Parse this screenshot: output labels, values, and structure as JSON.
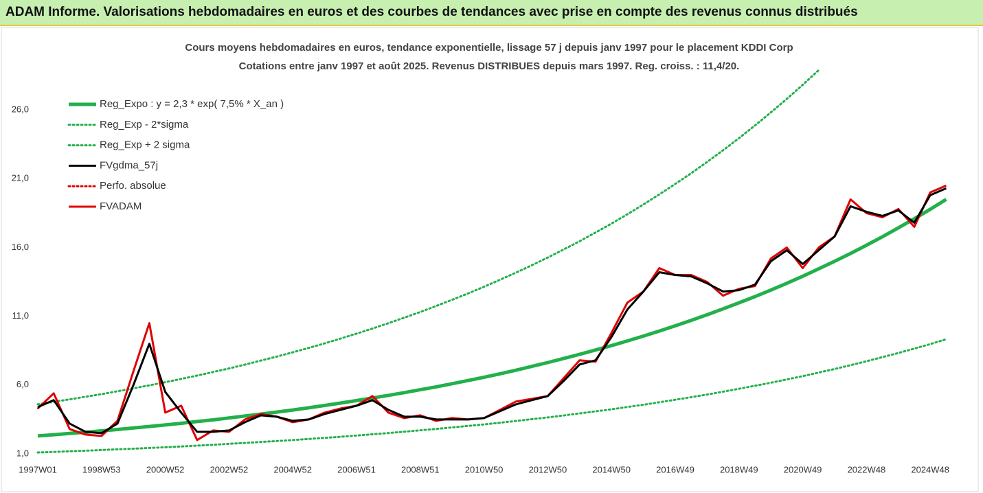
{
  "chart_data": {
    "type": "line",
    "title": "ADAM Informe. Valorisations hebdomadaires en euros et des courbes de tendances avec prise en compte des revenus connus distribués",
    "subtitle": [
      "Cours moyens hebdomadaires en euros, tendance exponentielle, lissage 57 j depuis janv 1997 pour le placement KDDI Corp",
      "Cotations entre janv 1997 et août 2025. Revenus DISTRIBUES depuis mars 1997. Reg. croiss. : 11,4/20."
    ],
    "categories": [
      "1997W01",
      null,
      null,
      null,
      "1998W53",
      null,
      null,
      null,
      "2000W52",
      null,
      null,
      null,
      "2002W52",
      null,
      null,
      null,
      "2004W52",
      null,
      null,
      null,
      "2006W51",
      null,
      null,
      null,
      "2008W51",
      null,
      null,
      null,
      "2010W50",
      null,
      null,
      null,
      "2012W50",
      null,
      null,
      null,
      "2014W50",
      null,
      null,
      null,
      "2016W49",
      null,
      null,
      null,
      "2018W49",
      null,
      null,
      null,
      "2020W49",
      null,
      null,
      null,
      "2022W48",
      null,
      null,
      null,
      "2024W48",
      null
    ],
    "ylim": [
      0.2,
      30
    ],
    "yticks": [
      {
        "value": 1,
        "label": "1,0"
      },
      {
        "value": 6,
        "label": "6,0"
      },
      {
        "value": 11,
        "label": "11,0"
      },
      {
        "value": 16,
        "label": "16,0"
      },
      {
        "value": 21,
        "label": "21,0"
      },
      {
        "value": 26,
        "label": "26,0"
      }
    ],
    "legend": "top-left",
    "series": [
      {
        "name": "Reg_Expo : y = 2,3 * exp( 7,5% *  X_an )",
        "color": "#22b04b",
        "line_style": "solid",
        "values": [
          2.3,
          2.39,
          2.48,
          2.57,
          2.67,
          2.77,
          2.88,
          2.99,
          3.1,
          3.22,
          3.35,
          3.47,
          3.61,
          3.75,
          3.89,
          4.04,
          4.19,
          4.35,
          4.52,
          4.69,
          4.87,
          5.06,
          5.25,
          5.45,
          5.66,
          5.87,
          6.1,
          6.33,
          6.57,
          6.82,
          7.08,
          7.36,
          7.64,
          7.93,
          8.23,
          8.55,
          8.87,
          9.21,
          9.56,
          9.93,
          10.31,
          10.7,
          11.11,
          11.54,
          11.98,
          12.43,
          12.91,
          13.4,
          13.91,
          14.45,
          15.0,
          15.57,
          16.17,
          16.78,
          17.43,
          18.09,
          18.78,
          19.5
        ]
      },
      {
        "name": "Reg_Exp - 2*sigma",
        "color": "#22b04b",
        "line_style": "dotted",
        "values": [
          1.1,
          1.14,
          1.19,
          1.23,
          1.28,
          1.33,
          1.38,
          1.43,
          1.48,
          1.54,
          1.6,
          1.66,
          1.73,
          1.79,
          1.86,
          1.93,
          2.0,
          2.08,
          2.16,
          2.24,
          2.33,
          2.42,
          2.51,
          2.61,
          2.71,
          2.81,
          2.92,
          3.03,
          3.14,
          3.26,
          3.39,
          3.52,
          3.65,
          3.79,
          3.94,
          4.09,
          4.24,
          4.41,
          4.57,
          4.75,
          4.93,
          5.12,
          5.31,
          5.52,
          5.73,
          5.95,
          6.17,
          6.41,
          6.65,
          6.91,
          7.17,
          7.45,
          7.73,
          8.03,
          8.33,
          8.65,
          8.98,
          9.33
        ]
      },
      {
        "name": "Reg_Exp + 2 sigma",
        "color": "#22b04b",
        "line_style": "dotted",
        "values": [
          4.6,
          4.78,
          4.96,
          5.15,
          5.34,
          5.55,
          5.76,
          5.98,
          6.21,
          6.45,
          6.69,
          6.95,
          7.21,
          7.49,
          7.78,
          8.07,
          8.38,
          8.7,
          9.03,
          9.38,
          9.74,
          10.11,
          10.5,
          10.9,
          11.31,
          11.75,
          12.2,
          12.66,
          13.15,
          13.65,
          14.17,
          14.71,
          15.27,
          15.86,
          16.46,
          17.09,
          17.74,
          18.42,
          19.13,
          19.86,
          20.62,
          21.4,
          22.22,
          23.07,
          23.95,
          24.87,
          25.82,
          26.8,
          27.83,
          28.89,
          null,
          null,
          null,
          null,
          null,
          null,
          null,
          null
        ]
      },
      {
        "name": "FVgdma_57j",
        "color": "#000000",
        "line_style": "solid",
        "values": [
          4.4,
          4.9,
          3.2,
          2.6,
          2.5,
          3.2,
          6.0,
          9.0,
          5.5,
          4.0,
          2.6,
          2.6,
          2.7,
          3.3,
          3.8,
          3.7,
          3.4,
          3.5,
          3.9,
          4.2,
          4.5,
          4.9,
          4.2,
          3.7,
          3.7,
          3.5,
          3.5,
          3.5,
          3.6,
          4.1,
          4.6,
          4.9,
          5.2,
          6.3,
          7.5,
          7.8,
          9.5,
          11.5,
          12.8,
          14.2,
          14.0,
          13.9,
          13.4,
          12.8,
          12.9,
          13.3,
          15.0,
          15.8,
          14.8,
          15.8,
          16.8,
          19.0,
          18.6,
          18.3,
          18.7,
          17.8,
          19.8,
          20.3
        ]
      },
      {
        "name": "Perfo. absolue",
        "color": "#e00000",
        "line_style": "dotted",
        "values": [
          4.3,
          5.4,
          2.8,
          2.4,
          2.3,
          3.4,
          7.0,
          10.5,
          4.0,
          4.5,
          2.0,
          2.7,
          2.6,
          3.5,
          3.9,
          3.7,
          3.3,
          3.5,
          4.0,
          4.3,
          4.5,
          5.2,
          4.0,
          3.6,
          3.8,
          3.4,
          3.6,
          3.5,
          3.6,
          4.2,
          4.8,
          5.0,
          5.2,
          6.5,
          7.8,
          7.7,
          9.8,
          12.0,
          12.8,
          14.5,
          14.0,
          14.0,
          13.5,
          12.5,
          13.0,
          13.2,
          15.2,
          16.0,
          14.5,
          16.0,
          16.8,
          19.5,
          18.5,
          18.2,
          18.8,
          17.5,
          20.0,
          20.5
        ]
      },
      {
        "name": "FVADAM",
        "color": "#e00000",
        "line_style": "solid",
        "values": [
          4.3,
          5.4,
          2.8,
          2.4,
          2.3,
          3.4,
          7.0,
          10.5,
          4.0,
          4.5,
          2.0,
          2.7,
          2.6,
          3.5,
          3.9,
          3.7,
          3.3,
          3.5,
          4.0,
          4.3,
          4.5,
          5.2,
          4.0,
          3.6,
          3.8,
          3.4,
          3.6,
          3.5,
          3.6,
          4.2,
          4.8,
          5.0,
          5.2,
          6.5,
          7.8,
          7.7,
          9.8,
          12.0,
          12.8,
          14.5,
          14.0,
          14.0,
          13.5,
          12.5,
          13.0,
          13.2,
          15.2,
          16.0,
          14.5,
          16.0,
          16.8,
          19.5,
          18.5,
          18.2,
          18.8,
          17.5,
          20.0,
          20.5
        ]
      }
    ]
  }
}
